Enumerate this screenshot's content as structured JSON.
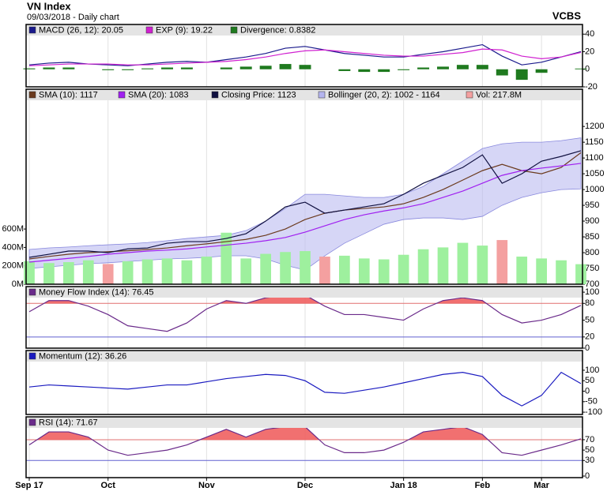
{
  "chart_data": [
    {
      "type": "line",
      "title": "VN Index",
      "subtitle": "09/03/2018 - Daily chart",
      "source": "VCBS",
      "ylim": [
        -20,
        51
      ],
      "yticks": [
        -20,
        0,
        20,
        40
      ],
      "series": [
        {
          "name": "MACD (26, 12): 20.05",
          "type": "line",
          "color": "#1a1a8c",
          "values": [
            5,
            7,
            8,
            6,
            5,
            4,
            6,
            8,
            9,
            8,
            11,
            14,
            18,
            24,
            26,
            22,
            18,
            16,
            14,
            14,
            17,
            20,
            24,
            28,
            15,
            5,
            8,
            14,
            20.05
          ]
        },
        {
          "name": "EXP (9): 19.22",
          "type": "line",
          "color": "#d020d0",
          "values": [
            4,
            5,
            6,
            6,
            6,
            5,
            5,
            6,
            7,
            8,
            9,
            11,
            14,
            18,
            21,
            22,
            20,
            18,
            16,
            15,
            15,
            17,
            19,
            23,
            22,
            15,
            12,
            14,
            19.22
          ]
        },
        {
          "name": "Divergence: 0.8382",
          "type": "bar",
          "color": "#1f7a1f",
          "values": [
            1,
            2,
            2,
            0,
            -1,
            -1,
            1,
            2,
            2,
            0,
            2,
            3,
            4,
            6,
            5,
            0,
            -2,
            -3,
            -3,
            -1,
            2,
            3,
            5,
            5,
            -7,
            -12,
            -4,
            0,
            0.8382
          ]
        }
      ]
    },
    {
      "type": "line",
      "ylim": [
        700,
        1318
      ],
      "yticks": [
        700,
        750,
        800,
        850,
        900,
        950,
        1000,
        1050,
        1100,
        1150,
        1200
      ],
      "y2lim": [
        0,
        2120
      ],
      "y2ticks": [
        {
          "value": 0,
          "label": "0M"
        },
        {
          "value": 200,
          "label": "200M"
        },
        {
          "value": 400,
          "label": "400M"
        },
        {
          "value": 600,
          "label": "600M"
        }
      ],
      "series": [
        {
          "name": "SMA (10): 1117",
          "type": "line",
          "color": "#6b3a1e",
          "values": [
            780,
            788,
            795,
            800,
            803,
            806,
            810,
            815,
            822,
            828,
            835,
            842,
            855,
            875,
            905,
            925,
            935,
            940,
            945,
            955,
            975,
            1000,
            1030,
            1060,
            1080,
            1060,
            1050,
            1070,
            1117
          ]
        },
        {
          "name": "SMA (20): 1083",
          "type": "line",
          "color": "#a020f0",
          "values": [
            770,
            776,
            782,
            788,
            795,
            800,
            805,
            808,
            812,
            818,
            824,
            830,
            838,
            848,
            865,
            885,
            905,
            920,
            932,
            942,
            955,
            975,
            995,
            1020,
            1045,
            1060,
            1068,
            1075,
            1083
          ]
        },
        {
          "name": "Closing Price: 1123",
          "type": "line",
          "color": "#101040",
          "values": [
            785,
            795,
            805,
            805,
            800,
            812,
            815,
            830,
            835,
            835,
            845,
            860,
            900,
            945,
            960,
            925,
            935,
            945,
            955,
            985,
            1020,
            1045,
            1070,
            1110,
            1020,
            1050,
            1090,
            1105,
            1123
          ]
        },
        {
          "name": "Bollinger (20, 2): 1002 - 1164",
          "type": "band",
          "color": "#b4b4ee",
          "upper": [
            810,
            815,
            818,
            822,
            825,
            828,
            832,
            838,
            845,
            850,
            855,
            870,
            900,
            940,
            985,
            985,
            980,
            975,
            975,
            985,
            1010,
            1050,
            1090,
            1130,
            1145,
            1150,
            1150,
            1155,
            1164
          ],
          "lower": [
            750,
            755,
            760,
            765,
            768,
            772,
            776,
            780,
            782,
            785,
            790,
            790,
            780,
            760,
            745,
            790,
            830,
            860,
            890,
            905,
            910,
            910,
            905,
            915,
            950,
            975,
            990,
            1000,
            1002
          ]
        },
        {
          "name": "Vol: 217.8M",
          "type": "volume",
          "axis": "y2",
          "color": "#f4a0a0",
          "up_color": "#9ef09e",
          "down_color": "#f4a0a0",
          "values": [
            250,
            230,
            240,
            260,
            220,
            250,
            270,
            280,
            260,
            300,
            560,
            280,
            330,
            350,
            360,
            300,
            310,
            280,
            270,
            320,
            380,
            400,
            450,
            420,
            480,
            300,
            280,
            260,
            217.8
          ]
        }
      ]
    },
    {
      "type": "line",
      "ylim": [
        0,
        110
      ],
      "yticks": [
        0,
        20,
        50,
        80,
        100
      ],
      "ref_lines": [
        {
          "value": 80,
          "color": "#e07070",
          "fill": "#f06060"
        },
        {
          "value": 20,
          "color": "#6060d0"
        }
      ],
      "series": [
        {
          "name": "Money Flow Index (14): 76.45",
          "type": "line",
          "color": "#6a2a8a",
          "values": [
            65,
            85,
            85,
            75,
            60,
            40,
            35,
            30,
            45,
            70,
            85,
            80,
            90,
            95,
            95,
            75,
            60,
            60,
            55,
            50,
            70,
            85,
            90,
            85,
            60,
            45,
            50,
            60,
            76.45
          ]
        }
      ]
    },
    {
      "type": "line",
      "ylim": [
        -111,
        194
      ],
      "yticks": [
        -100,
        -50,
        0,
        50,
        100
      ],
      "series": [
        {
          "name": "Momentum (12): 36.26",
          "type": "line",
          "color": "#1a1ac0",
          "values": [
            20,
            30,
            25,
            20,
            15,
            10,
            20,
            30,
            30,
            45,
            60,
            70,
            80,
            75,
            50,
            -5,
            -10,
            5,
            20,
            40,
            60,
            80,
            90,
            70,
            -20,
            -70,
            -20,
            90,
            36.26
          ]
        }
      ]
    },
    {
      "type": "line",
      "ylim": [
        -3,
        114
      ],
      "yticks": [
        0,
        30,
        50,
        70
      ],
      "ref_lines": [
        {
          "value": 70,
          "color": "#e07070",
          "fill": "#f06060"
        },
        {
          "value": 30,
          "color": "#6060d0"
        }
      ],
      "categories": [
        "Sep 17",
        null,
        null,
        null,
        "Oct",
        null,
        null,
        null,
        null,
        "Nov",
        null,
        null,
        null,
        null,
        "Dec",
        null,
        null,
        null,
        null,
        "Jan 18",
        null,
        null,
        null,
        "Feb",
        null,
        null,
        "Mar",
        null,
        null
      ],
      "series": [
        {
          "name": "RSI (14): 71.67",
          "type": "line",
          "color": "#6a2a8a",
          "values": [
            60,
            85,
            85,
            75,
            50,
            40,
            45,
            50,
            60,
            75,
            90,
            75,
            90,
            95,
            95,
            60,
            45,
            45,
            50,
            65,
            85,
            90,
            95,
            80,
            45,
            40,
            50,
            60,
            71.67
          ]
        }
      ]
    }
  ]
}
